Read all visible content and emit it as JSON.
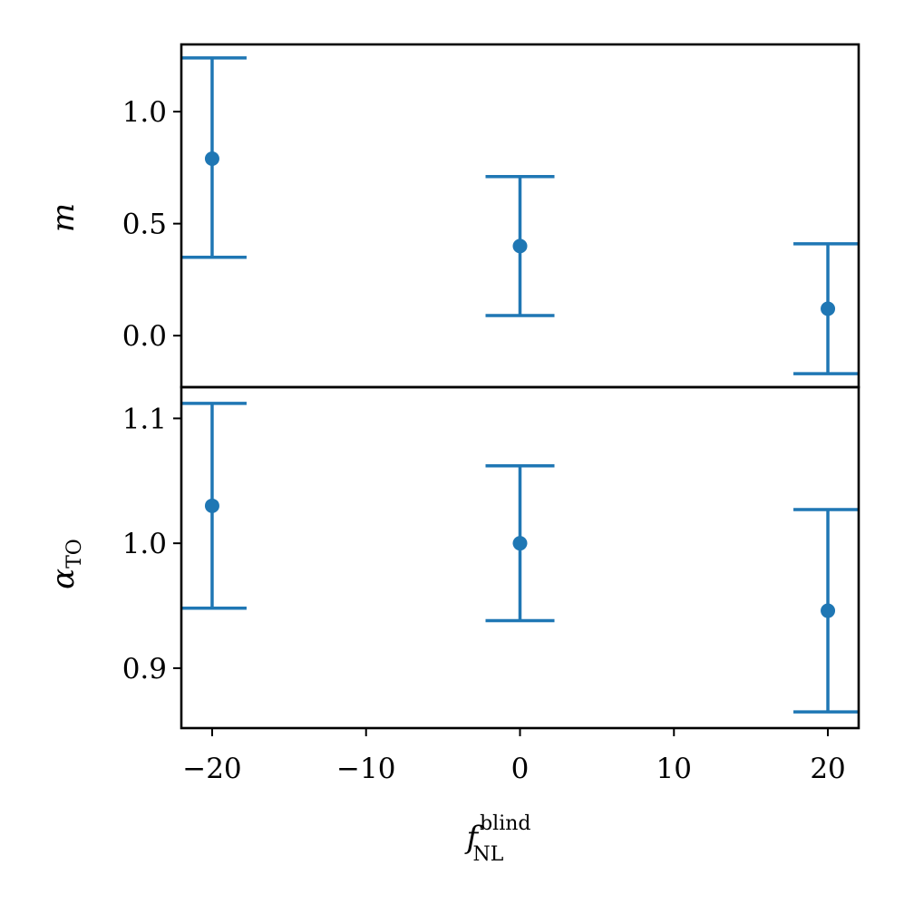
{
  "chart_data": {
    "type": "scatter",
    "error_bars": true,
    "shared_x": true,
    "x": [
      -20,
      0,
      20
    ],
    "xlabel": {
      "main": "f",
      "sup": "blind",
      "sub": "NL"
    },
    "xlim": [
      -22,
      22
    ],
    "xticks": [
      -20,
      -10,
      0,
      10,
      20
    ],
    "xtick_labels": [
      "−20",
      "−10",
      "0",
      "10",
      "20"
    ],
    "color": "#1f77b4",
    "panels": [
      {
        "ylabel": {
          "main": "m",
          "sub": ""
        },
        "ylim": [
          -0.23,
          1.3
        ],
        "yticks": [
          0.0,
          0.5,
          1.0
        ],
        "ytick_labels": [
          "0.0",
          "0.5",
          "1.0"
        ],
        "series": [
          {
            "y": [
              0.79,
              0.4,
              0.12
            ],
            "yerr_low": [
              0.44,
              0.31,
              0.29
            ],
            "yerr_high": [
              0.45,
              0.31,
              0.29
            ]
          }
        ]
      },
      {
        "ylabel": {
          "main": "α",
          "sub": "TO"
        },
        "ylim": [
          0.852,
          1.125
        ],
        "yticks": [
          0.9,
          1.0,
          1.1
        ],
        "ytick_labels": [
          "0.9",
          "1.0",
          "1.1"
        ],
        "series": [
          {
            "y": [
              1.03,
              1.0,
              0.946
            ],
            "yerr_low": [
              0.082,
              0.062,
              0.081
            ],
            "yerr_high": [
              0.082,
              0.062,
              0.081
            ]
          }
        ]
      }
    ]
  }
}
